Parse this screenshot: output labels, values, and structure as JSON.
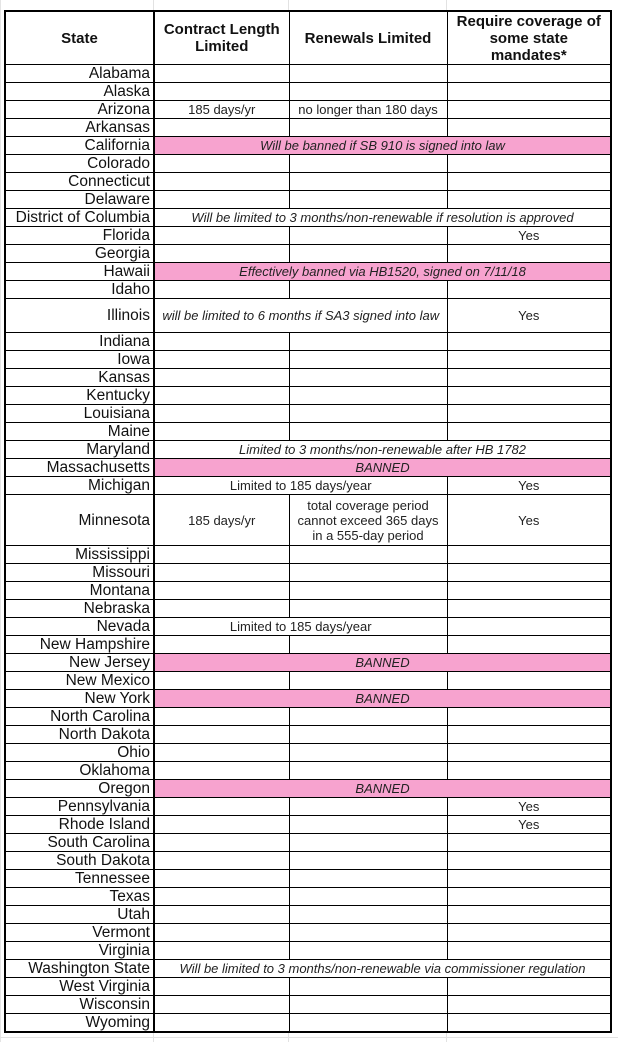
{
  "colors": {
    "banned_fill": "#f7a3cf"
  },
  "headers": [
    "State",
    "Contract Length Limited",
    "Renewals Limited",
    "Require coverage of some state mandates*"
  ],
  "rows": [
    {
      "state": "Alabama",
      "cells": []
    },
    {
      "state": "Alaska",
      "cells": []
    },
    {
      "state": "Arizona",
      "cells": [
        {
          "text": "185 days/yr"
        },
        {
          "text": "no longer than 180 days"
        },
        {
          "text": ""
        }
      ]
    },
    {
      "state": "Arkansas",
      "cells": []
    },
    {
      "state": "California",
      "cells": [
        {
          "text": "Will be banned if SB 910 is signed into law",
          "span": 3,
          "italic": true,
          "pink": true
        }
      ]
    },
    {
      "state": "Colorado",
      "cells": []
    },
    {
      "state": "Connecticut",
      "cells": []
    },
    {
      "state": "Delaware",
      "cells": []
    },
    {
      "state": "District of Columbia",
      "cells": [
        {
          "text": "Will be limited to 3 months/non-renewable if resolution is approved",
          "span": 3,
          "italic": true
        }
      ]
    },
    {
      "state": "Florida",
      "cells": [
        {
          "text": ""
        },
        {
          "text": ""
        },
        {
          "text": "Yes"
        }
      ]
    },
    {
      "state": "Georgia",
      "cells": []
    },
    {
      "state": "Hawaii",
      "cells": [
        {
          "text": "Effectively banned via HB1520, signed on 7/11/18",
          "span": 3,
          "italic": true,
          "pink": true
        }
      ]
    },
    {
      "state": "Idaho",
      "cells": []
    },
    {
      "state": "Illinois",
      "tall": 34,
      "cells": [
        {
          "text": "will be limited to 6 months if SA3 signed into law",
          "span": 2,
          "italic": true,
          "wrap": true
        },
        {
          "text": "Yes"
        }
      ]
    },
    {
      "state": "Indiana",
      "cells": []
    },
    {
      "state": "Iowa",
      "cells": []
    },
    {
      "state": "Kansas",
      "cells": []
    },
    {
      "state": "Kentucky",
      "cells": []
    },
    {
      "state": "Louisiana",
      "cells": []
    },
    {
      "state": "Maine",
      "cells": []
    },
    {
      "state": "Maryland",
      "cells": [
        {
          "text": "Limited to 3 months/non-renewable after HB 1782",
          "span": 3,
          "italic": true
        }
      ]
    },
    {
      "state": "Massachusetts",
      "cells": [
        {
          "text": "BANNED",
          "span": 3,
          "italic": true,
          "pink": true
        }
      ]
    },
    {
      "state": "Michigan",
      "cells": [
        {
          "text": "Limited to 185 days/year",
          "span": 2
        },
        {
          "text": "Yes"
        }
      ]
    },
    {
      "state": "Minnesota",
      "tall": 51,
      "cells": [
        {
          "text": "185 days/yr"
        },
        {
          "text": "total coverage period cannot exceed 365 days in a 555-day period",
          "wrap": true
        },
        {
          "text": "Yes"
        }
      ]
    },
    {
      "state": "Mississippi",
      "cells": []
    },
    {
      "state": "Missouri",
      "cells": []
    },
    {
      "state": "Montana",
      "cells": []
    },
    {
      "state": "Nebraska",
      "cells": []
    },
    {
      "state": "Nevada",
      "cells": [
        {
          "text": "Limited to 185 days/year",
          "span": 2
        },
        {
          "text": ""
        }
      ]
    },
    {
      "state": "New Hampshire",
      "cells": []
    },
    {
      "state": "New Jersey",
      "cells": [
        {
          "text": "BANNED",
          "span": 3,
          "italic": true,
          "pink": true
        }
      ]
    },
    {
      "state": "New Mexico",
      "cells": []
    },
    {
      "state": "New York",
      "cells": [
        {
          "text": "BANNED",
          "span": 3,
          "italic": true,
          "pink": true
        }
      ]
    },
    {
      "state": "North Carolina",
      "cells": []
    },
    {
      "state": "North Dakota",
      "cells": []
    },
    {
      "state": "Ohio",
      "cells": []
    },
    {
      "state": "Oklahoma",
      "cells": []
    },
    {
      "state": "Oregon",
      "cells": [
        {
          "text": "BANNED",
          "span": 3,
          "italic": true,
          "pink": true
        }
      ]
    },
    {
      "state": "Pennsylvania",
      "cells": [
        {
          "text": ""
        },
        {
          "text": ""
        },
        {
          "text": "Yes"
        }
      ]
    },
    {
      "state": "Rhode Island",
      "cells": [
        {
          "text": ""
        },
        {
          "text": ""
        },
        {
          "text": "Yes"
        }
      ]
    },
    {
      "state": "South Carolina",
      "cells": []
    },
    {
      "state": "South Dakota",
      "cells": []
    },
    {
      "state": "Tennessee",
      "cells": []
    },
    {
      "state": "Texas",
      "cells": []
    },
    {
      "state": "Utah",
      "cells": []
    },
    {
      "state": "Vermont",
      "cells": []
    },
    {
      "state": "Virginia",
      "cells": []
    },
    {
      "state": "Washington State",
      "cells": [
        {
          "text": "Will be limited to 3 months/non-renewable via commissioner regulation",
          "span": 3,
          "italic": true
        }
      ]
    },
    {
      "state": "West Virginia",
      "cells": []
    },
    {
      "state": "Wisconsin",
      "cells": []
    },
    {
      "state": "Wyoming",
      "cells": []
    }
  ]
}
